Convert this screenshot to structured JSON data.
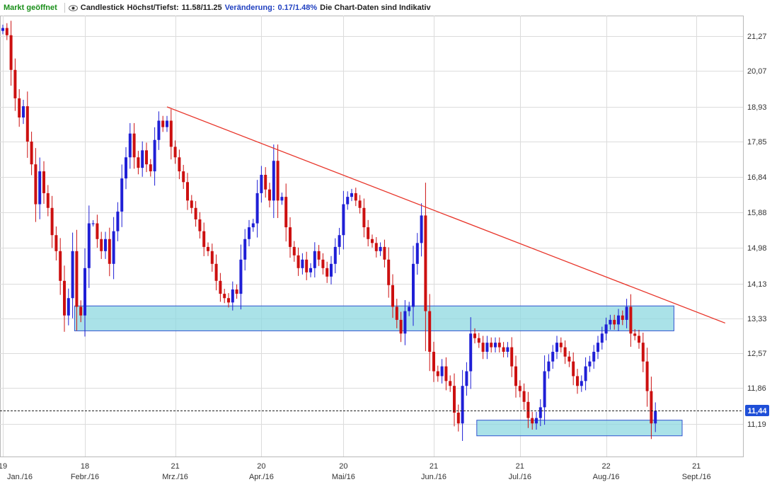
{
  "header": {
    "status": "Markt geöffnet",
    "chart_type_label": "Candlestick",
    "high_low_label": "Höchst/Tiefst:",
    "high_low_value": "11.58/11.25",
    "change_label": "Veränderung:",
    "change_value": "0.17/1.48%",
    "disclaimer": "Die Chart-Daten sind Indikativ"
  },
  "colors": {
    "up": "#1f1fd6",
    "down": "#cc1010",
    "trendline": "#e8352a",
    "zone_fill": "#8ed8e0",
    "zone_border": "#2f52d0",
    "price_box": "#1f4fd8",
    "grid": "#dcdcdc"
  },
  "chart_data": {
    "type": "candlestick",
    "y_ticks": [
      "21,27",
      "20,07",
      "18,93",
      "17,85",
      "16,84",
      "15,88",
      "14,98",
      "14,13",
      "13,33",
      "12,57",
      "11,86",
      "11,19"
    ],
    "x_ticks": [
      {
        "day": "19",
        "month": "Jan./16",
        "i": 0
      },
      {
        "day": "18",
        "month": "Febr./16",
        "i": 20
      },
      {
        "day": "21",
        "month": "Mrz./16",
        "i": 42
      },
      {
        "day": "20",
        "month": "Apr./16",
        "i": 63
      },
      {
        "day": "20",
        "month": "Mai/16",
        "i": 83
      },
      {
        "day": "21",
        "month": "Jun./16",
        "i": 105
      },
      {
        "day": "21",
        "month": "Jul./16",
        "i": 126
      },
      {
        "day": "22",
        "month": "Aug./16",
        "i": 147
      },
      {
        "day": "21",
        "month": "Sept./16",
        "i": 169
      }
    ],
    "current_price": 11.44,
    "current_price_label": "11,44",
    "resistance_line": {
      "from": {
        "i": 40,
        "value": 18.93
      },
      "to": {
        "i": 176,
        "value": 13.23
      }
    },
    "support_zones": [
      {
        "from_i": 18,
        "to_i": 163,
        "low": 13.06,
        "high": 13.62
      },
      {
        "from_i": 116,
        "to_i": 165,
        "low": 10.97,
        "high": 11.26
      }
    ],
    "closes": [
      21.55,
      21.3,
      20.1,
      19.2,
      18.6,
      18.95,
      17.85,
      17.2,
      16.1,
      17.0,
      16.4,
      16.0,
      15.3,
      14.9,
      14.2,
      13.4,
      13.8,
      14.9,
      13.6,
      13.4,
      14.5,
      15.6,
      15.6,
      15.2,
      14.9,
      15.2,
      14.6,
      15.4,
      15.9,
      16.8,
      17.4,
      18.1,
      17.4,
      17.1,
      17.6,
      17.2,
      17.0,
      17.9,
      18.5,
      18.3,
      18.5,
      17.7,
      17.4,
      17.0,
      16.7,
      16.2,
      16.0,
      15.7,
      15.4,
      15.0,
      14.9,
      14.6,
      14.2,
      13.9,
      13.8,
      13.7,
      14.0,
      13.9,
      14.7,
      15.2,
      15.5,
      15.6,
      16.4,
      16.9,
      16.5,
      16.2,
      17.3,
      16.2,
      16.3,
      15.5,
      15.0,
      14.8,
      14.5,
      14.7,
      14.4,
      14.5,
      14.9,
      14.7,
      14.5,
      14.3,
      14.6,
      15.0,
      15.3,
      16.1,
      16.3,
      16.4,
      16.2,
      16.0,
      15.5,
      15.2,
      15.1,
      14.9,
      15.0,
      14.7,
      14.1,
      13.6,
      13.3,
      13.0,
      13.5,
      13.6,
      14.6,
      15.1,
      15.8,
      13.5,
      12.6,
      12.2,
      12.1,
      12.3,
      12.0,
      11.9,
      11.4,
      11.2,
      11.9,
      12.2,
      13.0,
      12.9,
      12.8,
      12.6,
      12.8,
      12.7,
      12.8,
      12.7,
      12.6,
      12.7,
      12.3,
      11.9,
      11.8,
      11.6,
      11.3,
      11.2,
      11.3,
      11.5,
      12.2,
      12.4,
      12.6,
      12.8,
      12.7,
      12.5,
      12.4,
      12.1,
      11.9,
      12.0,
      12.3,
      12.4,
      12.6,
      12.8,
      13.0,
      13.2,
      13.3,
      13.2,
      13.4,
      13.3,
      13.6,
      13.0,
      12.95,
      12.8,
      12.4,
      11.8,
      11.2,
      11.43
    ]
  }
}
